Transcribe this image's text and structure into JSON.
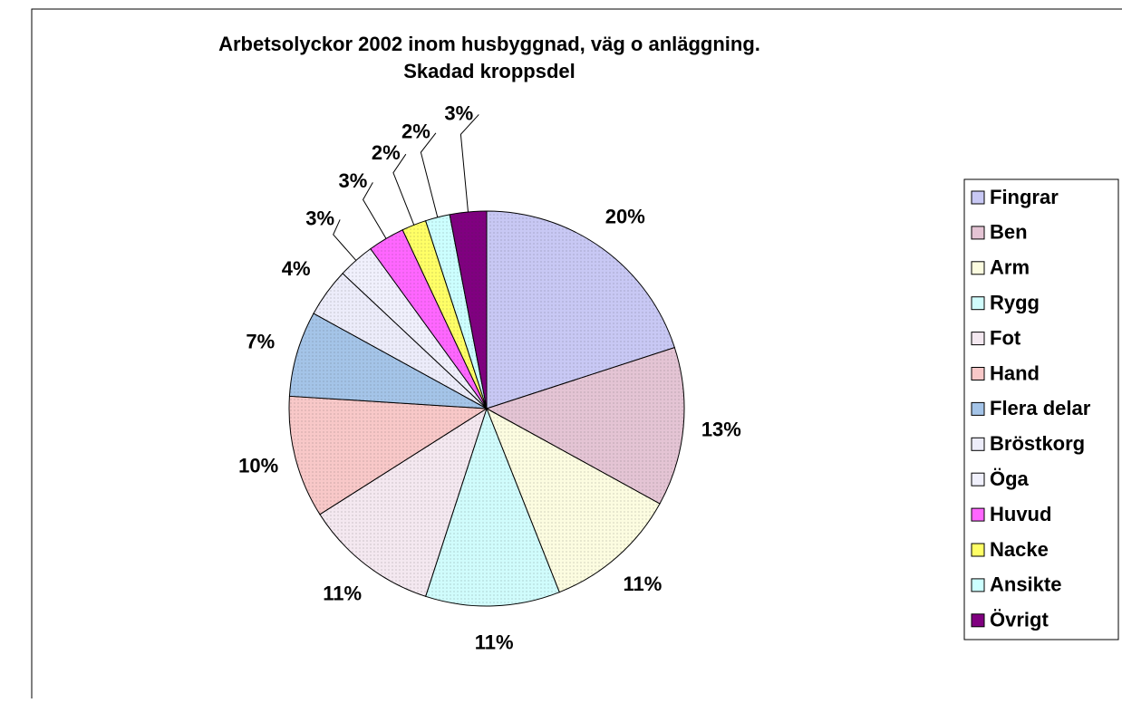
{
  "chart_data": {
    "type": "pie",
    "title": [
      "Arbetsolyckor 2002 inom husbyggnad, väg o anläggning.",
      "Skadad kroppsdel"
    ],
    "categories": [
      "Fingrar",
      "Ben",
      "Arm",
      "Rygg",
      "Fot",
      "Hand",
      "Flera delar",
      "Bröstkorg",
      "Öga",
      "Huvud",
      "Nacke",
      "Ansikte",
      "Övrigt"
    ],
    "values": [
      20,
      13,
      11,
      11,
      11,
      10,
      7,
      4,
      3,
      3,
      2,
      2,
      3
    ],
    "value_labels": [
      "20%",
      "13%",
      "11%",
      "11%",
      "11%",
      "10%",
      "7%",
      "4%",
      "3%",
      "3%",
      "2%",
      "2%",
      "3%"
    ],
    "colors": [
      "#c8c8f4",
      "#e4c4d4",
      "#fcfce0",
      "#d0fcfc",
      "#f4e8f0",
      "#f8c8c8",
      "#a4c4e8",
      "#ececfa",
      "#f0f0fc",
      "#ff66ff",
      "#ffff66",
      "#ccffff",
      "#800080"
    ],
    "legend": "right"
  }
}
